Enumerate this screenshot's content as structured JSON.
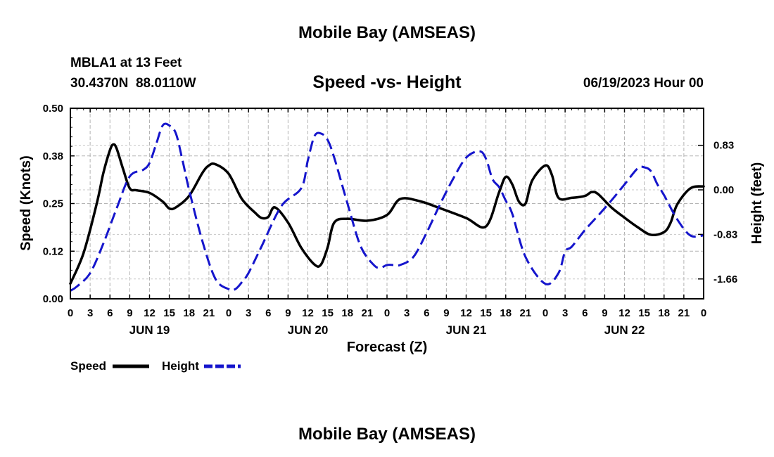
{
  "header": {
    "title_top": "Mobile Bay (AMSEAS)",
    "station": "MBLA1 at 13 Feet",
    "coords": "30.4370N  88.0110W",
    "datetime": "06/19/2023 Hour 00",
    "title_bottom": "Mobile Bay (AMSEAS)"
  },
  "chart_data": {
    "type": "line",
    "title": "Speed -vs- Height",
    "xlabel": "Forecast (Z)",
    "ylabel": "Speed (Knots)",
    "y2label": "Height (feet)",
    "xlim": [
      0,
      96
    ],
    "ylim": [
      0,
      0.5
    ],
    "y2lim": [
      -2.03,
      1.52
    ],
    "x_tick_labels": [
      "0",
      "3",
      "6",
      "9",
      "12",
      "15",
      "18",
      "21",
      "0",
      "3",
      "6",
      "9",
      "12",
      "15",
      "18",
      "21",
      "0",
      "3",
      "6",
      "9",
      "12",
      "15",
      "18",
      "21",
      "0",
      "3",
      "6",
      "9",
      "12",
      "15",
      "18",
      "21",
      "0"
    ],
    "date_labels": [
      {
        "label": "JUN 19",
        "x": 12
      },
      {
        "label": "JUN 20",
        "x": 36
      },
      {
        "label": "JUN 21",
        "x": 60
      },
      {
        "label": "JUN 22",
        "x": 84
      }
    ],
    "y_ticks": [
      "0.00",
      "0.12",
      "0.25",
      "0.38",
      "0.50"
    ],
    "y_tick_values": [
      0,
      0.125,
      0.25,
      0.375,
      0.5
    ],
    "y2_ticks": [
      "0.83",
      "0.00",
      "-0.83",
      "-1.66"
    ],
    "y2_tick_values": [
      0.83,
      0.0,
      -0.83,
      -1.66
    ],
    "grid": true,
    "legend": "bottom-left",
    "series": [
      {
        "name": "Speed",
        "axis": "left",
        "color": "#000000",
        "style": "solid",
        "x": [
          0,
          2,
          4,
          5,
          6,
          6.5,
          7,
          8,
          9,
          10,
          12,
          14,
          15,
          16,
          18,
          20,
          21,
          22,
          24,
          26,
          28,
          29,
          30,
          31,
          33,
          35,
          37,
          38,
          39,
          40,
          42,
          45,
          48,
          50,
          53,
          56,
          60,
          63,
          65,
          66,
          67,
          68,
          69,
          70,
          72,
          73,
          74,
          76,
          78,
          79,
          80,
          82,
          84,
          86,
          88,
          90,
          91,
          92,
          94,
          96
        ],
        "values": [
          0.04,
          0.12,
          0.25,
          0.33,
          0.39,
          0.405,
          0.395,
          0.34,
          0.29,
          0.285,
          0.278,
          0.255,
          0.237,
          0.24,
          0.27,
          0.33,
          0.35,
          0.353,
          0.328,
          0.262,
          0.226,
          0.212,
          0.215,
          0.24,
          0.2,
          0.134,
          0.09,
          0.09,
          0.135,
          0.2,
          0.21,
          0.205,
          0.22,
          0.262,
          0.256,
          0.238,
          0.212,
          0.19,
          0.28,
          0.32,
          0.3,
          0.255,
          0.25,
          0.31,
          0.35,
          0.325,
          0.265,
          0.265,
          0.27,
          0.28,
          0.275,
          0.24,
          0.213,
          0.188,
          0.168,
          0.175,
          0.2,
          0.248,
          0.29,
          0.295
        ]
      },
      {
        "name": "Height",
        "axis": "right",
        "color": "#1515cc",
        "style": "dashed",
        "x": [
          0,
          1,
          3,
          5,
          7,
          9,
          11,
          12,
          13,
          14,
          15,
          16,
          17,
          18,
          20,
          22,
          24,
          25,
          26,
          27,
          29,
          32,
          35,
          36,
          37,
          38,
          39,
          40,
          42,
          44,
          46,
          47,
          48,
          49,
          50,
          52,
          54,
          56,
          58,
          60,
          62,
          63,
          64,
          65,
          66,
          67,
          69,
          72,
          74,
          75,
          76,
          78,
          80,
          82,
          84,
          86,
          87,
          88,
          89,
          90,
          92,
          94,
          96
        ],
        "values": [
          -1.88,
          -1.8,
          -1.55,
          -1.0,
          -0.35,
          0.25,
          0.37,
          0.5,
          0.85,
          1.2,
          1.2,
          1.05,
          0.55,
          0.0,
          -0.95,
          -1.66,
          -1.85,
          -1.85,
          -1.72,
          -1.55,
          -1.05,
          -0.3,
          0.03,
          0.55,
          1.0,
          1.05,
          0.93,
          0.6,
          -0.25,
          -1.05,
          -1.4,
          -1.45,
          -1.4,
          -1.4,
          -1.4,
          -1.25,
          -0.8,
          -0.28,
          0.2,
          0.6,
          0.72,
          0.58,
          0.2,
          0.05,
          -0.2,
          -0.45,
          -1.25,
          -1.75,
          -1.55,
          -1.15,
          -1.06,
          -0.75,
          -0.48,
          -0.2,
          0.1,
          0.4,
          0.42,
          0.35,
          0.1,
          -0.1,
          -0.55,
          -0.85,
          -0.85
        ]
      }
    ]
  }
}
